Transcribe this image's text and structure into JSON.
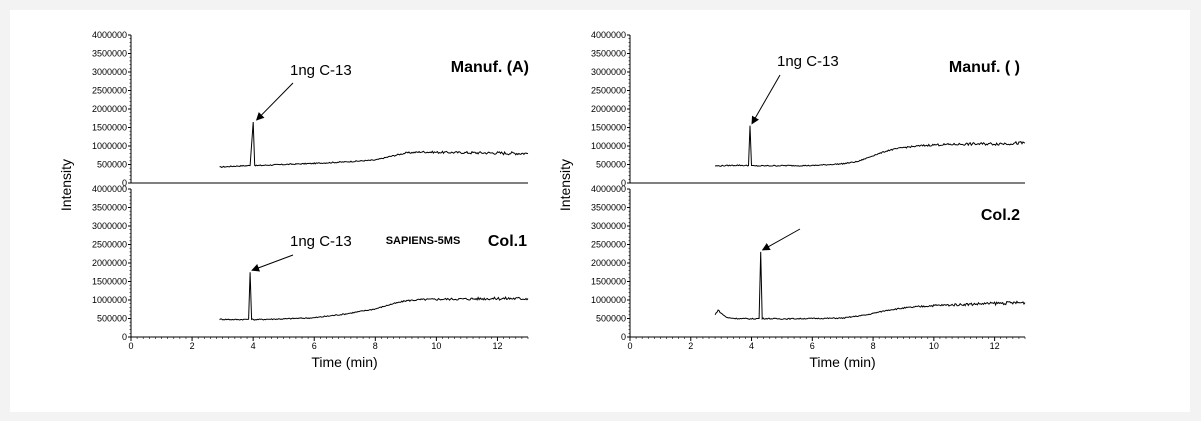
{
  "figure": {
    "chart_data": [
      {
        "type": "line",
        "panel": "left-top",
        "title": "Manuf. (A)",
        "annotation": "1ng C-13",
        "ylabel": "Intensity",
        "xlabel": "",
        "xlim": [
          0,
          13
        ],
        "ylim": [
          0,
          4000000
        ],
        "yticks": [
          0,
          500000,
          1000000,
          1500000,
          2000000,
          2500000,
          3000000,
          3500000,
          4000000
        ],
        "xticks": [
          0,
          2,
          4,
          6,
          8,
          10,
          12
        ],
        "x": [
          2.9,
          3.5,
          3.9,
          4.0,
          4.05,
          4.1,
          5,
          6,
          7,
          8,
          8.5,
          9,
          9.5,
          10,
          11,
          12,
          13
        ],
        "y": [
          430000,
          460000,
          470000,
          1650000,
          480000,
          470000,
          500000,
          530000,
          570000,
          620000,
          720000,
          810000,
          840000,
          830000,
          820000,
          810000,
          800000
        ],
        "peak": {
          "x": 4.05,
          "y": 1650000
        }
      },
      {
        "type": "line",
        "panel": "left-bottom",
        "title": "Col.1",
        "subtitle": "SAPIENS-5MS",
        "annotation": "1ng C-13",
        "ylabel": "Intensity",
        "xlabel": "Time (min)",
        "xlim": [
          0,
          13
        ],
        "ylim": [
          0,
          4000000
        ],
        "yticks": [
          0,
          500000,
          1000000,
          1500000,
          2000000,
          2500000,
          3000000,
          3500000,
          4000000
        ],
        "xticks": [
          0,
          2,
          4,
          6,
          8,
          10,
          12
        ],
        "x": [
          2.9,
          3.5,
          3.85,
          3.9,
          3.95,
          4.0,
          5,
          6,
          7,
          8,
          8.5,
          9,
          9.5,
          10,
          11,
          12,
          13
        ],
        "y": [
          480000,
          470000,
          480000,
          1750000,
          490000,
          470000,
          490000,
          520000,
          620000,
          760000,
          880000,
          980000,
          1010000,
          1020000,
          1030000,
          1040000,
          1040000
        ],
        "peak": {
          "x": 3.9,
          "y": 1750000
        }
      },
      {
        "type": "line",
        "panel": "right-top",
        "title": "Manuf. (  )",
        "annotation": "1ng C-13",
        "ylabel": "Intensity",
        "xlabel": "",
        "xlim": [
          0,
          13
        ],
        "ylim": [
          0,
          4000000
        ],
        "yticks": [
          0,
          500000,
          1000000,
          1500000,
          2000000,
          2500000,
          3000000,
          3500000,
          4000000
        ],
        "xticks": [
          0,
          2,
          4,
          6,
          8,
          10,
          12
        ],
        "x": [
          2.8,
          3.5,
          3.9,
          3.95,
          4.0,
          4.1,
          5,
          6,
          7,
          7.5,
          8,
          8.5,
          9,
          9.5,
          10,
          11,
          12,
          13
        ],
        "y": [
          460000,
          480000,
          470000,
          1550000,
          470000,
          460000,
          470000,
          470000,
          520000,
          580000,
          740000,
          880000,
          960000,
          1000000,
          1030000,
          1050000,
          1060000,
          1080000
        ],
        "peak": {
          "x": 3.95,
          "y": 1550000
        }
      },
      {
        "type": "line",
        "panel": "right-bottom",
        "title": "Col.2",
        "annotation": "",
        "ylabel": "Intensity",
        "xlabel": "Time (min)",
        "xlim": [
          0,
          13
        ],
        "ylim": [
          0,
          4000000
        ],
        "yticks": [
          0,
          500000,
          1000000,
          1500000,
          2000000,
          2500000,
          3000000,
          3500000,
          4000000
        ],
        "xticks": [
          0,
          2,
          4,
          6,
          8,
          10,
          12
        ],
        "x": [
          2.8,
          2.9,
          3.0,
          3.2,
          3.5,
          4.0,
          4.25,
          4.3,
          4.35,
          5,
          6,
          7,
          7.8,
          8.5,
          9,
          9.5,
          10,
          11,
          12,
          13
        ],
        "y": [
          600000,
          730000,
          640000,
          520000,
          500000,
          490000,
          500000,
          2300000,
          500000,
          490000,
          500000,
          510000,
          600000,
          730000,
          780000,
          820000,
          850000,
          880000,
          910000,
          930000
        ],
        "peak": {
          "x": 4.3,
          "y": 2300000
        }
      }
    ]
  }
}
